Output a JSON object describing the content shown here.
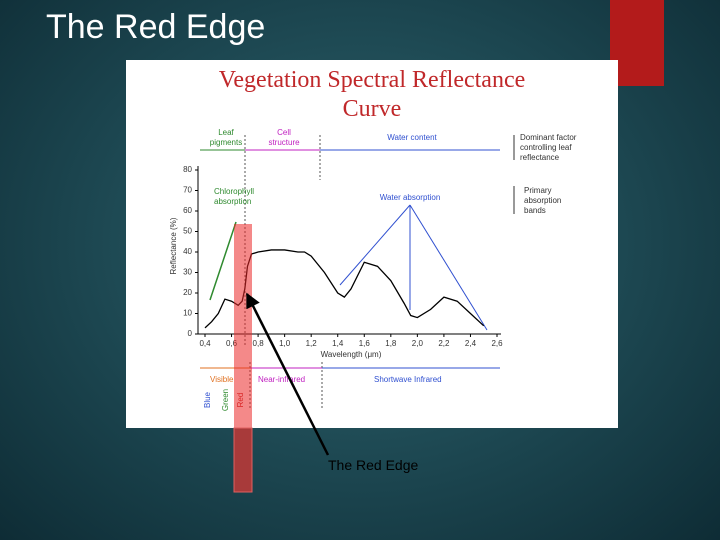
{
  "slide": {
    "title": "The Red Edge",
    "callout": "The Red Edge"
  },
  "chart_data": {
    "type": "line",
    "title": "Vegetation Spectral Reflectance Curve",
    "x_label": "Wavelength (μm)",
    "y_label": "Reflectance (%)",
    "x": [
      0.4,
      0.45,
      0.5,
      0.55,
      0.6,
      0.65,
      0.68,
      0.7,
      0.72,
      0.75,
      0.8,
      0.9,
      1.0,
      1.1,
      1.15,
      1.2,
      1.3,
      1.4,
      1.45,
      1.5,
      1.6,
      1.7,
      1.8,
      1.9,
      1.95,
      2.0,
      2.1,
      2.2,
      2.3,
      2.4,
      2.5
    ],
    "series": [
      {
        "color": "#000000",
        "values": [
          3,
          6,
          10,
          17,
          16,
          14,
          16,
          22,
          33,
          39,
          40,
          41,
          41,
          40,
          40,
          38,
          30,
          20,
          18,
          22,
          35,
          33,
          26,
          15,
          9,
          8,
          12,
          18,
          16,
          10,
          4
        ]
      }
    ],
    "xlim": [
      0.4,
      2.6
    ],
    "ylim": [
      0,
      80
    ],
    "xticks": [
      {
        "value": 0.4,
        "label": "0,4"
      },
      {
        "value": 0.6,
        "label": "0,6"
      },
      {
        "value": 0.8,
        "label": "0,8"
      },
      {
        "value": 1.0,
        "label": "1,0"
      },
      {
        "value": 1.2,
        "label": "1,2"
      },
      {
        "value": 1.4,
        "label": "1,4"
      },
      {
        "value": 1.6,
        "label": "1,6"
      },
      {
        "value": 1.8,
        "label": "1,8"
      },
      {
        "value": 2.0,
        "label": "2,0"
      },
      {
        "value": 2.2,
        "label": "2,2"
      },
      {
        "value": 2.4,
        "label": "2,4"
      },
      {
        "value": 2.6,
        "label": "2,6"
      }
    ],
    "yticks": [
      0,
      10,
      20,
      30,
      40,
      50,
      60,
      70,
      80
    ],
    "annotations": {
      "leaf_pigments": "Leaf pigments",
      "cell_structure": "Cell structure",
      "water_content": "Water content",
      "dominant_factor": "Dominant factor controlling leaf reflectance",
      "primary_bands": "Primary absorption bands",
      "chlorophyll": "Chlorophyll absorption",
      "water_absorption": "Water absorption",
      "visible": "Visible",
      "near_infrared": "Near-infrared",
      "shortwave_infrared": "Shortwave Infrared",
      "blue": "Blue",
      "green": "Green",
      "red": "Red"
    }
  }
}
